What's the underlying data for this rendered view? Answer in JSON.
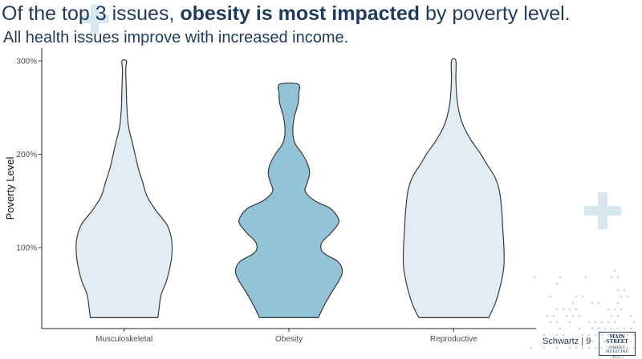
{
  "slide": {
    "title_pre": "Of the top 3 issues, ",
    "title_bold": "obesity is most impacted",
    "title_post": " by poverty level.",
    "subtitle": "All health issues improve with increased income.",
    "footer": "Schwartz | 9",
    "logo_line1": "MAIN STREET",
    "logo_line2": "FAMILY MEDICINE",
    "logo_line3": "~PLLC~"
  },
  "colors": {
    "title": "#1f3a5a",
    "light_fill": "#e1edf2",
    "highlight_fill": "#92c3d6",
    "outline": "#3a3a3a",
    "decor": "#d6e7ef"
  },
  "chart_data": {
    "type": "violin",
    "title": "",
    "xlabel": "",
    "ylabel": "Poverty Level",
    "ylim": [
      25,
      300
    ],
    "yticks": [
      {
        "value": 100,
        "label": "100%"
      },
      {
        "value": 200,
        "label": "200%"
      },
      {
        "value": 300,
        "label": "300%"
      }
    ],
    "grid": false,
    "categories": [
      "Musculoskeletal",
      "Obesity",
      "Reproductive"
    ],
    "violins": [
      {
        "category": "Musculoskeletal",
        "highlight": false,
        "range": [
          25,
          300
        ],
        "density_profile": [
          [
            25,
            0.62
          ],
          [
            35,
            0.64
          ],
          [
            50,
            0.68
          ],
          [
            65,
            0.78
          ],
          [
            85,
            0.86
          ],
          [
            100,
            0.88
          ],
          [
            112,
            0.86
          ],
          [
            125,
            0.78
          ],
          [
            140,
            0.58
          ],
          [
            155,
            0.42
          ],
          [
            170,
            0.34
          ],
          [
            185,
            0.26
          ],
          [
            200,
            0.2
          ],
          [
            215,
            0.14
          ],
          [
            230,
            0.08
          ],
          [
            250,
            0.05
          ],
          [
            270,
            0.04
          ],
          [
            290,
            0.03
          ],
          [
            300,
            0.04
          ]
        ]
      },
      {
        "category": "Obesity",
        "highlight": true,
        "range": [
          25,
          275
        ],
        "density_profile": [
          [
            25,
            0.54
          ],
          [
            35,
            0.62
          ],
          [
            50,
            0.76
          ],
          [
            65,
            0.92
          ],
          [
            75,
            0.98
          ],
          [
            85,
            0.9
          ],
          [
            95,
            0.62
          ],
          [
            105,
            0.6
          ],
          [
            115,
            0.76
          ],
          [
            125,
            0.9
          ],
          [
            132,
            0.9
          ],
          [
            142,
            0.76
          ],
          [
            150,
            0.48
          ],
          [
            160,
            0.3
          ],
          [
            170,
            0.34
          ],
          [
            180,
            0.38
          ],
          [
            190,
            0.34
          ],
          [
            200,
            0.25
          ],
          [
            212,
            0.11
          ],
          [
            225,
            0.07
          ],
          [
            240,
            0.1
          ],
          [
            255,
            0.17
          ],
          [
            265,
            0.18
          ],
          [
            275,
            0.17
          ]
        ]
      },
      {
        "category": "Reproductive",
        "highlight": false,
        "range": [
          25,
          300
        ],
        "density_profile": [
          [
            25,
            0.64
          ],
          [
            40,
            0.76
          ],
          [
            60,
            0.86
          ],
          [
            80,
            0.92
          ],
          [
            100,
            0.92
          ],
          [
            120,
            0.9
          ],
          [
            140,
            0.88
          ],
          [
            160,
            0.84
          ],
          [
            175,
            0.76
          ],
          [
            190,
            0.6
          ],
          [
            200,
            0.5
          ],
          [
            215,
            0.32
          ],
          [
            230,
            0.18
          ],
          [
            245,
            0.1
          ],
          [
            260,
            0.06
          ],
          [
            280,
            0.04
          ],
          [
            300,
            0.04
          ]
        ]
      }
    ]
  }
}
